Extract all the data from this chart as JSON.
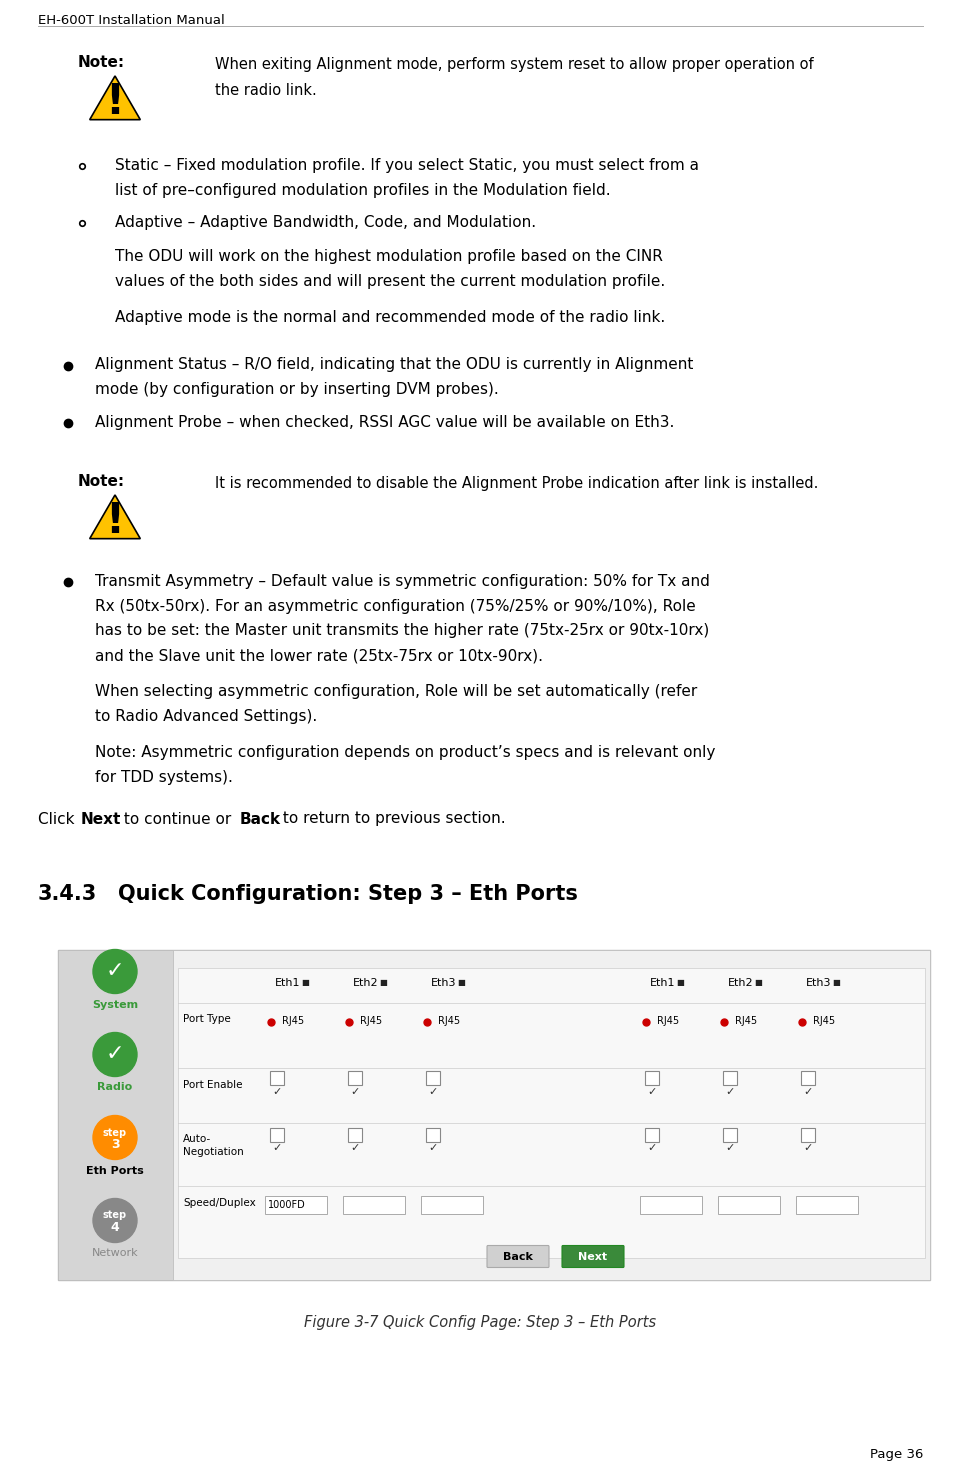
{
  "page_header": "EH-600T Installation Manual",
  "page_number": "Page 36",
  "bg_color": "#ffffff",
  "note_label": "Note:",
  "note1_text_line1": "When exiting Alignment mode, perform system reset to allow proper operation of",
  "note1_text_line2": "the radio link.",
  "note2_text": "It is recommended to disable the Alignment Probe indication after link is installed.",
  "b1_l1": "Static – Fixed modulation profile. If you select Static, you must select from a",
  "b1_l2": "list of pre–configured modulation profiles in the Modulation field.",
  "b2_l1": "Adaptive – Adaptive Bandwidth, Code, and Modulation.",
  "b2_l2": "The ODU will work on the highest modulation profile based on the CINR",
  "b2_l3": "values of the both sides and will present the current modulation profile.",
  "b2_l4": "Adaptive mode is the normal and recommended mode of the radio link.",
  "b3_l1": "Alignment Status – R/O field, indicating that the ODU is currently in Alignment",
  "b3_l2": "mode (by configuration or by inserting DVM probes).",
  "b4_l1": "Alignment Probe – when checked, RSSI AGC value will be available on Eth3.",
  "b5_l1": "Transmit Asymmetry – Default value is symmetric configuration: 50% for Tx and",
  "b5_l2": "Rx (50tx-50rx). For an asymmetric configuration (75%/25% or 90%/10%), Role",
  "b5_l3": "has to be set: the Master unit transmits the higher rate (75tx-25rx or 90tx-10rx)",
  "b5_l4": "and the Slave unit the lower rate (25tx-75rx or 10tx-90rx).",
  "b5s1_l1": "When selecting asymmetric configuration, Role will be set automatically (refer",
  "b5s1_l2": "to Radio Advanced Settings).",
  "b5s2_l1": "Note: Asymmetric configuration depends on product’s specs and is relevant only",
  "b5s2_l2": "for TDD systems).",
  "click_line": "Click  to continue or  to return to previous section.",
  "section_num": "3.4.3",
  "section_title": "Quick Configuration: Step 3 – Eth Ports",
  "figure_caption": "Figure 3-7 Quick Config Page: Step 3 – Eth Ports",
  "tri_color": "#FFC200",
  "tri_edge": "#000000",
  "green_color": "#3a9a3a",
  "orange_color": "#FF8C00",
  "gray_color": "#888888",
  "sidebar_bg": "#d8d8d8",
  "content_bg": "#eeeeee",
  "row_bg": "#f5f5f5",
  "sep_color": "#cccccc",
  "rj45_color": "#cc0000",
  "back_btn_color": "#d0d0d0",
  "next_btn_color": "#3a8a3a",
  "fs": 11,
  "fs_small": 9,
  "fs_note": 10.5,
  "fs_section": 15,
  "lh": 0.0195
}
